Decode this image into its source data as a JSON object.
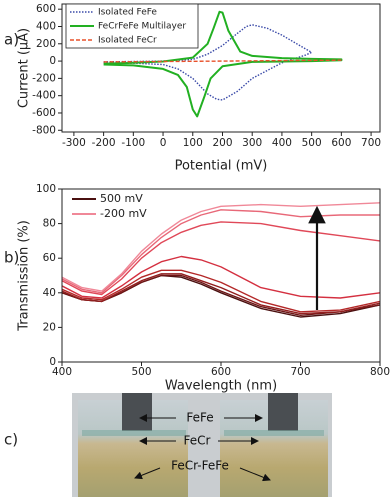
{
  "panel_labels": [
    "a)",
    "b)",
    "c)"
  ],
  "chart_data": [
    {
      "type": "line",
      "xlabel": "Potential (mV)",
      "ylabel": "Current (µA)",
      "xlim": [
        -340,
        730
      ],
      "xticks": [
        -300,
        -200,
        -100,
        0,
        100,
        200,
        300,
        400,
        500,
        600,
        700
      ],
      "ylim": [
        -820,
        660
      ],
      "yticks": [
        -800,
        -600,
        -400,
        -200,
        0,
        200,
        400,
        600
      ],
      "grid": false,
      "legend": "upper left",
      "series": [
        {
          "name": "Isolated FeFe",
          "color": "#3a4aa8",
          "style": "dotted",
          "x": [
            -200,
            0,
            100,
            150,
            200,
            250,
            280,
            300,
            350,
            400,
            450,
            500,
            480,
            400,
            300,
            250,
            200,
            180,
            150,
            100,
            50,
            0,
            -100,
            -200
          ],
          "values": [
            -10,
            0,
            20,
            80,
            180,
            320,
            400,
            420,
            380,
            300,
            200,
            100,
            70,
            -20,
            -200,
            -350,
            -450,
            -440,
            -380,
            -200,
            -90,
            -40,
            -25,
            -20
          ]
        },
        {
          "name": "FeCrFeFe Multilayer",
          "color": "#22b022",
          "style": "solid",
          "x": [
            -200,
            -100,
            0,
            100,
            150,
            170,
            190,
            200,
            220,
            260,
            300,
            400,
            500,
            600,
            600,
            500,
            300,
            200,
            160,
            140,
            115,
            100,
            80,
            50,
            0,
            -100,
            -200
          ],
          "values": [
            -30,
            -20,
            -5,
            40,
            200,
            380,
            570,
            560,
            350,
            110,
            60,
            35,
            25,
            20,
            10,
            0,
            -10,
            -60,
            -200,
            -400,
            -640,
            -560,
            -300,
            -160,
            -90,
            -50,
            -40
          ]
        },
        {
          "name": "Isolated FeCr",
          "color": "#e8502a",
          "style": "dashed",
          "x": [
            -200,
            0,
            200,
            400,
            600
          ],
          "values": [
            -10,
            -5,
            0,
            5,
            10
          ]
        }
      ]
    },
    {
      "type": "line",
      "xlabel": "Wavelength (nm)",
      "ylabel": "Transmission (%)",
      "xlim": [
        400,
        800
      ],
      "xticks": [
        400,
        500,
        600,
        700,
        800
      ],
      "ylim": [
        0,
        100
      ],
      "yticks": [
        0,
        20,
        40,
        60,
        80,
        100
      ],
      "grid": false,
      "legend": "upper left",
      "x": [
        400,
        425,
        450,
        475,
        500,
        525,
        550,
        575,
        600,
        650,
        700,
        750,
        800
      ],
      "series": [
        {
          "name": "500 mV",
          "color": "#4a1010",
          "values": [
            40,
            36,
            35,
            40,
            46,
            50,
            49,
            45,
            40,
            31,
            26,
            28,
            33
          ]
        },
        {
          "color": "#6e1616",
          "values": [
            40,
            36,
            35,
            40,
            46,
            50,
            50,
            46,
            41,
            32,
            27,
            29,
            33
          ]
        },
        {
          "color": "#921e1e",
          "values": [
            41,
            36,
            35,
            41,
            47,
            51,
            51,
            47,
            43,
            33,
            28,
            29,
            34
          ]
        },
        {
          "color": "#b42828",
          "values": [
            42,
            37,
            36,
            42,
            49,
            53,
            53,
            50,
            46,
            35,
            29,
            30,
            35
          ]
        },
        {
          "color": "#d43040",
          "values": [
            44,
            38,
            37,
            44,
            52,
            58,
            61,
            59,
            55,
            43,
            38,
            37,
            40
          ]
        },
        {
          "color": "#e04858",
          "values": [
            47,
            41,
            39,
            48,
            60,
            69,
            75,
            79,
            81,
            80,
            76,
            73,
            70
          ]
        },
        {
          "color": "#e86878",
          "values": [
            48,
            42,
            40,
            50,
            62,
            72,
            80,
            85,
            88,
            87,
            84,
            85,
            85
          ]
        },
        {
          "name": "-200 mV",
          "color": "#f08898",
          "values": [
            49,
            43,
            41,
            51,
            64,
            74,
            82,
            87,
            90,
            91,
            90,
            91,
            92
          ]
        }
      ]
    }
  ],
  "photo_labels": [
    "FeFe",
    "FeCr",
    "FeCr-FeFe"
  ]
}
